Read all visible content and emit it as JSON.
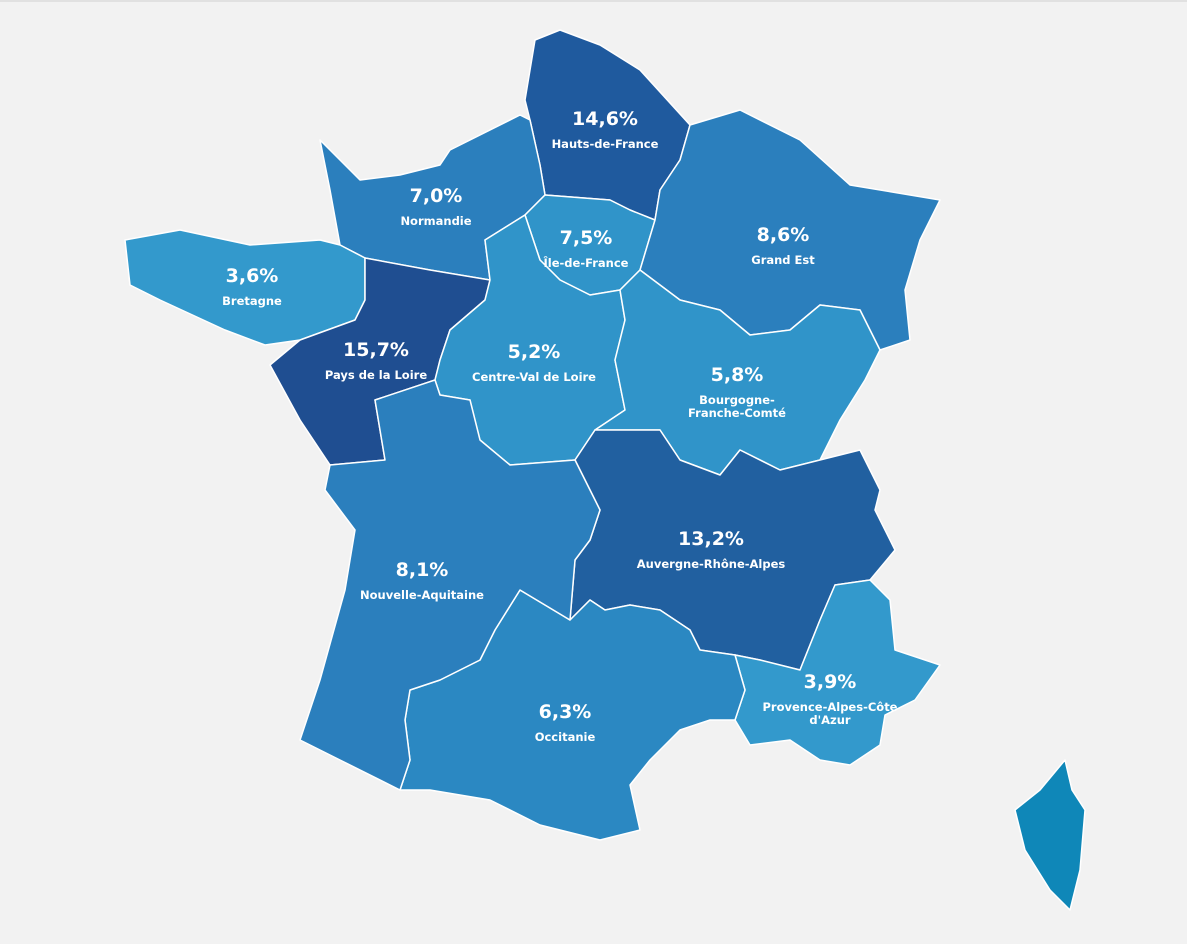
{
  "map": {
    "background": "#f2f2f2",
    "border_color": "#ffffff",
    "regions": [
      {
        "name": [
          "Hauts-de-France"
        ],
        "label": "14,6%",
        "color": "#1f5a9e"
      },
      {
        "name": [
          "Normandie"
        ],
        "label": "7,0%",
        "color": "#2b7fbd"
      },
      {
        "name": [
          "Bretagne"
        ],
        "label": "3,6%",
        "color": "#3399cc"
      },
      {
        "name": [
          "Pays de la Loire"
        ],
        "label": "15,7%",
        "color": "#1f4e91"
      },
      {
        "name": [
          "Île-de-France"
        ],
        "label": "7,5%",
        "color": "#3094c9"
      },
      {
        "name": [
          "Centre-Val de Loire"
        ],
        "label": "5,2%",
        "color": "#3094c9"
      },
      {
        "name": [
          "Grand Est"
        ],
        "label": "8,6%",
        "color": "#2b7fbd"
      },
      {
        "name": [
          "Bourgogne-",
          "Franche-Comté"
        ],
        "label": "5,8%",
        "color": "#3094c9"
      },
      {
        "name": [
          "Auvergne-Rhône-Alpes"
        ],
        "label": "13,2%",
        "color": "#2160a0"
      },
      {
        "name": [
          "Provence-Alpes-Côte",
          "d'Azur"
        ],
        "label": "3,9%",
        "color": "#3399cc"
      },
      {
        "name": [
          "Occitanie"
        ],
        "label": "6,3%",
        "color": "#2b88c2"
      },
      {
        "name": [
          "Nouvelle-Aquitaine"
        ],
        "label": "8,1%",
        "color": "#2b7fbd"
      }
    ],
    "corsica": {
      "color": "#0f87b8"
    }
  }
}
